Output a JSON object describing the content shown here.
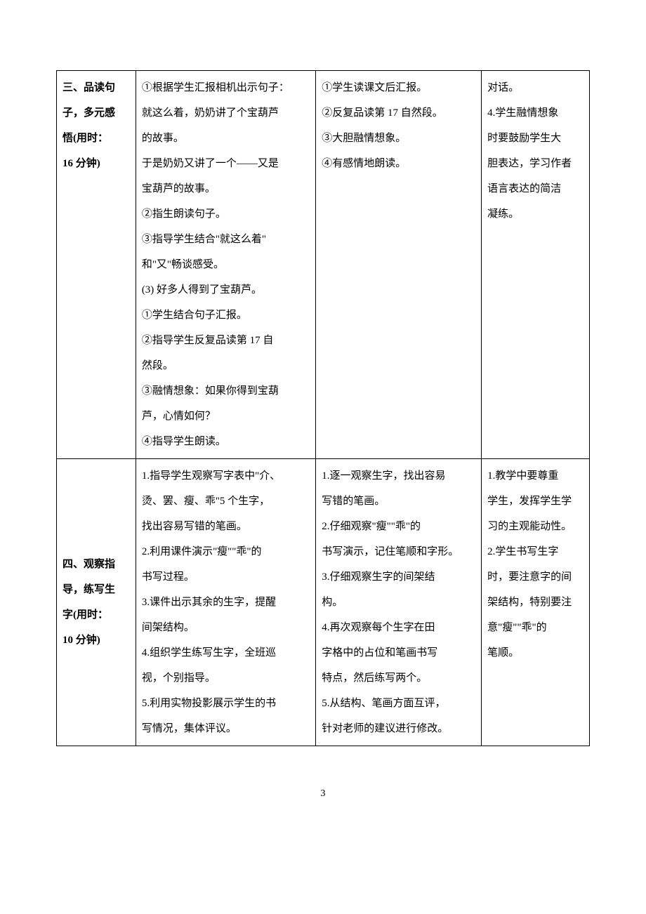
{
  "page_number": "3",
  "table": {
    "rows": [
      {
        "col1_lines": [
          "三、品读句",
          "子，多元感",
          "悟(用时：",
          "16 分钟)"
        ],
        "col1_valign": "top",
        "col2_lines": [
          "①根据学生汇报相机出示句子：",
          "就这么着，奶奶讲了个宝葫芦",
          "的故事。",
          "于是奶奶又讲了一个——又是",
          "宝葫芦的故事。",
          "②指生朗读句子。",
          "③指导学生结合\"就这么着\"",
          "和\"又\"畅谈感受。",
          "(3) 好多人得到了宝葫芦。",
          "①学生结合句子汇报。",
          "②指导学生反复品读第 17 自",
          "然段。",
          "③融情想象：如果你得到宝葫",
          "芦，心情如何？",
          "④指导学生朗读。"
        ],
        "col3_lines": [
          "①学生读课文后汇报。",
          "②反复品读第 17 自然段。",
          "③大胆融情想象。",
          "④有感情地朗读。"
        ],
        "col4_lines": [
          "对话。",
          "4.学生融情想象",
          "时要鼓励学生大",
          "胆表达，学习作者",
          "语言表达的简洁",
          "凝练。"
        ]
      },
      {
        "col1_lines": [
          "四、观察指",
          "导，练写生",
          "字(用时：",
          "10 分钟)"
        ],
        "col1_valign": "middle",
        "col2_lines": [
          "1.指导学生观察写字表中\"介、",
          "烫、罢、瘦、乖\"5 个生字，",
          "找出容易写错的笔画。",
          "2.利用课件演示\"瘦\"\"乖\"的",
          "书写过程。",
          "3.课件出示其余的生字，提醒",
          "间架结构。",
          "4.组织学生练写生字，全班巡",
          "视，个别指导。",
          "5.利用实物投影展示学生的书",
          "写情况，集体评议。"
        ],
        "col3_lines": [
          "1.逐一观察生字，找出容易",
          "写错的笔画。",
          "2.仔细观察\"瘦\"\"乖\"的",
          "书写演示，记住笔顺和字形。",
          "3.仔细观察生字的间架结",
          "构。",
          "4.再次观察每个生字在田",
          "字格中的占位和笔画书写",
          "特点，然后练写两个。",
          "5.从结构、笔画方面互评，",
          "针对老师的建议进行修改。"
        ],
        "col4_lines": [
          "1.教学中要尊重",
          "学生，发挥学生学",
          "习的主观能动性。",
          "2.学生书写生字",
          "时，要注意字的间",
          "架结构，特别要注",
          "意\"瘦\"\"乖\"的",
          "笔顺。"
        ]
      }
    ]
  }
}
